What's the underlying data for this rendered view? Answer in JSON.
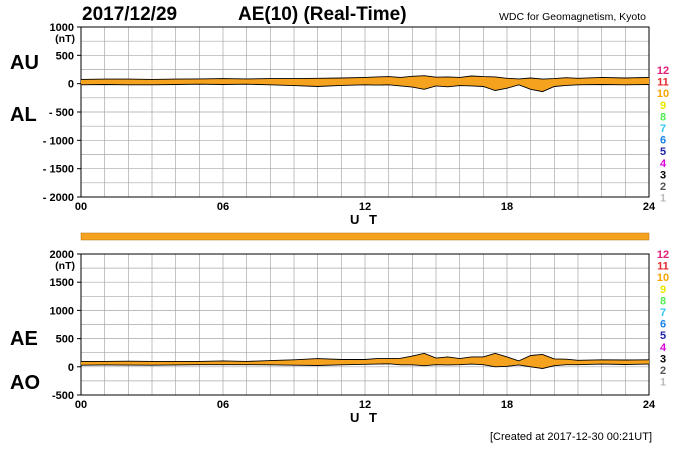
{
  "header": {
    "date": "2017/12/29",
    "title": "AE(10) (Real-Time)",
    "source": "WDC for Geomagnetism, Kyoto"
  },
  "footer": {
    "created": "[Created at 2017-12-30 00:21UT]"
  },
  "colors": {
    "fill": "#f5a21f",
    "grid": "#a8a8a8",
    "stations": [
      "#bbbbbb",
      "#555555",
      "#000000",
      "#dd00dd",
      "#2222aa",
      "#1a7fe8",
      "#33c8f0",
      "#55ee55",
      "#e8e800",
      "#f5a500",
      "#e8282a",
      "#e0207a"
    ]
  },
  "stations_count_labels": [
    "1",
    "2",
    "3",
    "4",
    "5",
    "6",
    "7",
    "8",
    "9",
    "10",
    "11",
    "12"
  ],
  "chart_data": [
    {
      "type": "area",
      "name_upper": "AU",
      "name_lower": "AL",
      "unit": "(nT)",
      "xlabel": "U T",
      "xlim": [
        0,
        24
      ],
      "xticks": [
        "00",
        "06",
        "12",
        "18",
        "24"
      ],
      "ylim": [
        -2000,
        1000
      ],
      "yticks": [
        "1000",
        "500",
        "0",
        "- 500",
        "- 1000",
        "- 1500",
        "- 2000"
      ],
      "ytick_values": [
        1000,
        500,
        0,
        -500,
        -1000,
        -1500,
        -2000
      ],
      "x": [
        0,
        1,
        2,
        3,
        4,
        5,
        6,
        7,
        8,
        9,
        10,
        11,
        12,
        12.5,
        13,
        13.5,
        14,
        14.5,
        15,
        15.5,
        16,
        16.5,
        17,
        17.5,
        18,
        18.5,
        19,
        19.5,
        20,
        20.5,
        21,
        22,
        23,
        24
      ],
      "series": [
        {
          "name": "AU",
          "values": [
            75,
            80,
            80,
            75,
            80,
            85,
            90,
            85,
            90,
            90,
            95,
            100,
            110,
            120,
            125,
            110,
            130,
            140,
            115,
            120,
            110,
            135,
            125,
            120,
            95,
            85,
            100,
            80,
            90,
            105,
            95,
            110,
            100,
            110
          ]
        },
        {
          "name": "AL",
          "values": [
            -20,
            -15,
            -20,
            -20,
            -15,
            -10,
            -15,
            -10,
            -20,
            -35,
            -50,
            -30,
            -20,
            -25,
            -20,
            -40,
            -60,
            -100,
            -40,
            -55,
            -35,
            -40,
            -50,
            -120,
            -80,
            -20,
            -100,
            -140,
            -50,
            -30,
            -20,
            -15,
            -20,
            -15
          ]
        }
      ]
    },
    {
      "type": "area",
      "name_upper": "AE",
      "name_lower": "AO",
      "unit": "(nT)",
      "xlabel": "U T",
      "xlim": [
        0,
        24
      ],
      "xticks": [
        "00",
        "06",
        "12",
        "18",
        "24"
      ],
      "ylim": [
        -500,
        2000
      ],
      "yticks": [
        "2000",
        "1500",
        "1000",
        "500",
        "0",
        "-500"
      ],
      "ytick_values": [
        2000,
        1500,
        1000,
        500,
        0,
        -500
      ],
      "x": [
        0,
        1,
        2,
        3,
        4,
        5,
        6,
        7,
        8,
        9,
        10,
        11,
        12,
        12.5,
        13,
        13.5,
        14,
        14.5,
        15,
        15.5,
        16,
        16.5,
        17,
        17.5,
        18,
        18.5,
        19,
        19.5,
        20,
        20.5,
        21,
        22,
        23,
        24
      ],
      "series": [
        {
          "name": "AE",
          "values": [
            95,
            95,
            100,
            95,
            95,
            95,
            105,
            95,
            110,
            125,
            145,
            130,
            130,
            145,
            145,
            150,
            190,
            240,
            155,
            175,
            145,
            175,
            175,
            240,
            175,
            105,
            200,
            220,
            140,
            135,
            115,
            125,
            120,
            125
          ]
        },
        {
          "name": "AO",
          "values": [
            28,
            33,
            30,
            28,
            33,
            38,
            38,
            38,
            35,
            28,
            23,
            35,
            45,
            48,
            53,
            35,
            35,
            20,
            38,
            33,
            38,
            48,
            38,
            0,
            8,
            33,
            0,
            -30,
            20,
            38,
            38,
            48,
            40,
            48
          ]
        }
      ]
    }
  ]
}
